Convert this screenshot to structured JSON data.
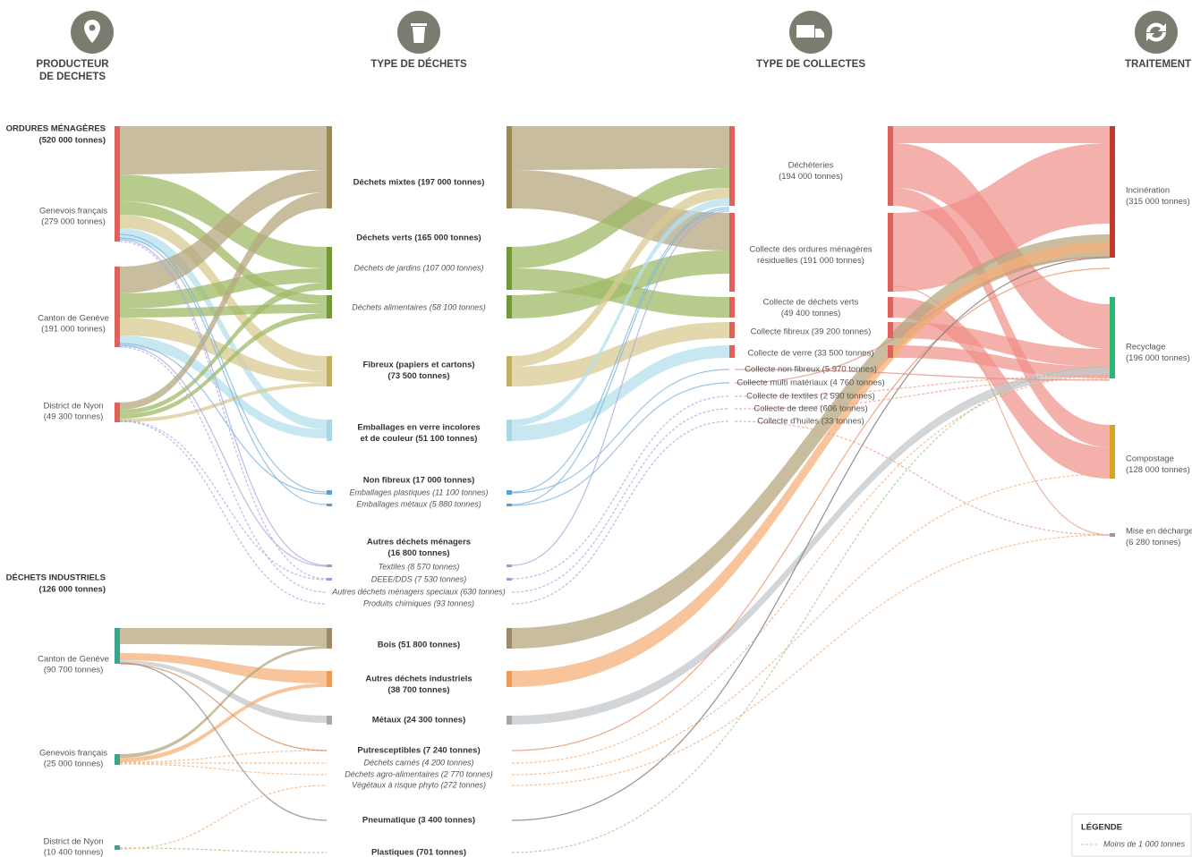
{
  "headers": [
    {
      "lines": [
        "PRODUCTEUR",
        "DE DECHETS"
      ]
    },
    {
      "lines": [
        "TYPE DE DÉCHETS"
      ]
    },
    {
      "lines": [
        "TYPE DE COLLECTES"
      ]
    },
    {
      "lines": [
        "TRAITEMENT"
      ]
    }
  ],
  "producers": [
    {
      "title": [
        "ORDURES MÉNAGÈRES",
        "(520 000 tonnes)"
      ],
      "regions": [
        {
          "lines": [
            "Genevois français",
            "(279 000 tonnes)"
          ]
        },
        {
          "lines": [
            "Canton de Genève",
            "(191 000 tonnes)"
          ]
        },
        {
          "lines": [
            "District de Nyon",
            "(49 300 tonnes)"
          ]
        }
      ]
    },
    {
      "title": [
        "DÉCHETS INDUSTRIELS",
        "(126 000 tonnes)"
      ],
      "regions": [
        {
          "lines": [
            "Canton de Genève",
            "(90 700 tonnes)"
          ]
        },
        {
          "lines": [
            "Genevois français",
            "(25 000 tonnes)"
          ]
        },
        {
          "lines": [
            "District de Nyon",
            "(10 400 tonnes)"
          ]
        }
      ]
    }
  ],
  "waste_types": [
    {
      "lines": [
        "Déchets mixtes (197 000  tonnes)"
      ]
    },
    {
      "lines": [
        "Déchets verts (165 000 tonnes)"
      ]
    },
    {
      "lines": [
        "Déchets de jardins (107 000 tonnes)"
      ]
    },
    {
      "lines": [
        "Déchets alimentaires (58 100 tonnes)"
      ]
    },
    {
      "lines": [
        "Fibreux (papiers et cartons)",
        "(73 500 tonnes)"
      ]
    },
    {
      "lines": [
        "Emballages en verre incolores",
        "et de couleur (51 100 tonnes)"
      ]
    },
    {
      "lines": [
        "Non fibreux (17 000 tonnes)"
      ]
    },
    {
      "lines": [
        "Emballages plastiques (11 100 tonnes)"
      ]
    },
    {
      "lines": [
        "Emballages métaux (5 880 tonnes)"
      ]
    },
    {
      "lines": [
        "Autres déchets ménagers",
        "(16 800 tonnes)"
      ]
    },
    {
      "lines": [
        "Textiles (8 570 tonnes)"
      ]
    },
    {
      "lines": [
        "DEEE/DDS (7 530 tonnes)"
      ]
    },
    {
      "lines": [
        "Autres déchets ménagers speciaux (630 tonnes)"
      ]
    },
    {
      "lines": [
        "Produits chimiques (93 tonnes)"
      ]
    },
    {
      "lines": [
        "Bois (51 800 tonnes)"
      ]
    },
    {
      "lines": [
        "Autres déchets industriels",
        "(38 700 tonnes)"
      ]
    },
    {
      "lines": [
        "Métaux (24 300 tonnes)"
      ]
    },
    {
      "lines": [
        "Putresceptibles (7 240 tonnes)"
      ]
    },
    {
      "lines": [
        "Déchets carnés (4 200 tonnes)"
      ]
    },
    {
      "lines": [
        "Déchets agro-alimentaires (2 770 tonnes)"
      ]
    },
    {
      "lines": [
        "Végétaux à risque phyto (272 tonnes)"
      ]
    },
    {
      "lines": [
        "Pneumatique (3 400 tonnes)"
      ]
    },
    {
      "lines": [
        "Plastiques (701 tonnes)"
      ]
    }
  ],
  "collections": [
    {
      "lines": [
        "Déchèteries",
        "(194 000 tonnes)"
      ]
    },
    {
      "lines": [
        "Collecte des ordures ménagères",
        "résiduelles (191 000 tonnes)"
      ]
    },
    {
      "lines": [
        "Collecte de déchets verts",
        "(49 400 tonnes)"
      ]
    },
    {
      "lines": [
        "Collecte fibreux (39 200 tonnes)"
      ]
    },
    {
      "lines": [
        "Collecte de verre (33 500 tonnes)"
      ]
    },
    {
      "lines": [
        "Collecte non fibreux (5 970 tonnes)"
      ]
    },
    {
      "lines": [
        "Collecte multi matériaux (4 760 tonnes)"
      ]
    },
    {
      "lines": [
        "Collecte de textiles (2 590 tonnes)"
      ]
    },
    {
      "lines": [
        "Collecte de deee (606 tonnes)"
      ]
    },
    {
      "lines": [
        "Collecte d'huiles (33 tonnes)"
      ]
    }
  ],
  "treatments": [
    {
      "lines": [
        "Incinération",
        "(315 000 tonnes)"
      ]
    },
    {
      "lines": [
        "Recyclage",
        "(196 000 tonnes)"
      ]
    },
    {
      "lines": [
        "Compostage",
        "(128 000 tonnes)"
      ]
    },
    {
      "lines": [
        "Mise en décharge",
        "(6 280 tonnes)"
      ]
    }
  ],
  "legend": {
    "title": "LÉGENDE",
    "item": "Moins de 1 000 tonnes"
  }
}
